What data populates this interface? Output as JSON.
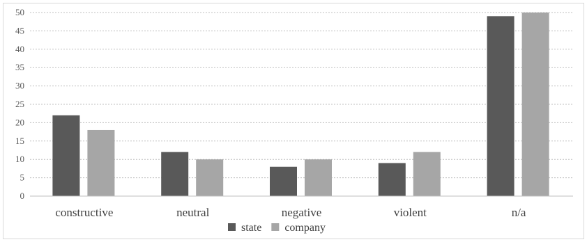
{
  "chart_data": {
    "type": "bar",
    "categories": [
      "constructive",
      "neutral",
      "negative",
      "violent",
      "n/a"
    ],
    "series": [
      {
        "name": "state",
        "values": [
          22,
          12,
          8,
          9,
          49
        ],
        "color": "#595959"
      },
      {
        "name": "company",
        "values": [
          18,
          10,
          10,
          12,
          50
        ],
        "color": "#a6a6a6"
      }
    ],
    "ylim": [
      0,
      50
    ],
    "yticks": [
      0,
      5,
      10,
      15,
      20,
      25,
      30,
      35,
      40,
      45,
      50
    ],
    "grid": true,
    "grid_style": "dotted",
    "legend_position": "bottom-center",
    "title": "",
    "xlabel": "",
    "ylabel": ""
  }
}
